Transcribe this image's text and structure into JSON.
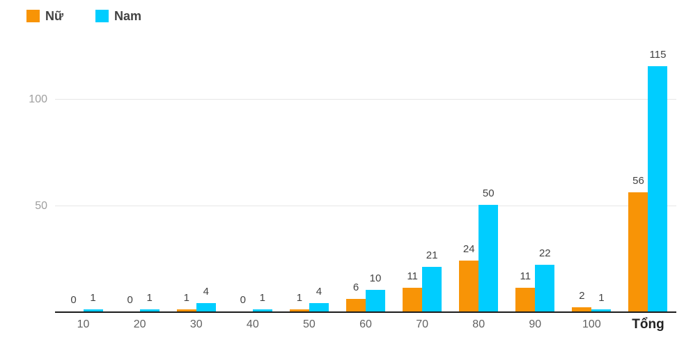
{
  "chart_data": {
    "type": "bar",
    "title": "",
    "xlabel": "",
    "ylabel": "",
    "categories": [
      "10",
      "20",
      "30",
      "40",
      "50",
      "60",
      "70",
      "80",
      "90",
      "100",
      "Tổng"
    ],
    "series": [
      {
        "name": "Nữ",
        "color": "#f89406",
        "values": [
          0,
          0,
          1,
          0,
          1,
          6,
          11,
          24,
          11,
          2,
          56
        ]
      },
      {
        "name": "Nam",
        "color": "#00cdff",
        "values": [
          1,
          1,
          4,
          1,
          4,
          10,
          21,
          50,
          22,
          1,
          115
        ]
      }
    ],
    "y_ticks": [
      50,
      100
    ],
    "ylim": [
      0,
      120
    ],
    "grid": "horizontal",
    "legend_position": "top-left",
    "value_labels": true
  }
}
